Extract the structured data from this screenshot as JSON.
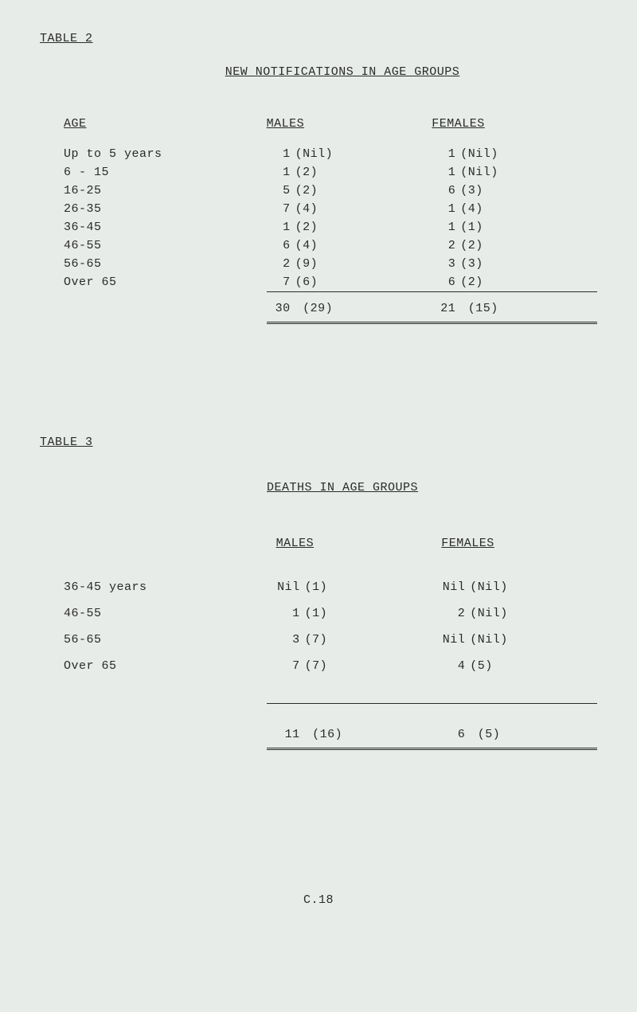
{
  "page_footer": "C.18",
  "colors": {
    "background": "#e8ece8",
    "text": "#2a2a2a"
  },
  "font": {
    "family": "Courier New, monospace",
    "base_size_pt": 11
  },
  "table2": {
    "label": "TABLE 2",
    "title": "NEW NOTIFICATIONS IN AGE GROUPS",
    "columns": {
      "age": "AGE",
      "males": "MALES",
      "females": "FEMALES"
    },
    "rows": [
      {
        "age": "Up to 5 years",
        "males_n": "1",
        "males_p": "(Nil)",
        "females_n": "1",
        "females_p": "(Nil)"
      },
      {
        "age": "6 - 15",
        "males_n": "1",
        "males_p": "(2)",
        "females_n": "1",
        "females_p": "(Nil)"
      },
      {
        "age": "16-25",
        "males_n": "5",
        "males_p": "(2)",
        "females_n": "6",
        "females_p": "(3)"
      },
      {
        "age": "26-35",
        "males_n": "7",
        "males_p": "(4)",
        "females_n": "1",
        "females_p": "(4)"
      },
      {
        "age": "36-45",
        "males_n": "1",
        "males_p": "(2)",
        "females_n": "1",
        "females_p": "(1)"
      },
      {
        "age": "46-55",
        "males_n": "6",
        "males_p": "(4)",
        "females_n": "2",
        "females_p": "(2)"
      },
      {
        "age": "56-65",
        "males_n": "2",
        "males_p": "(9)",
        "females_n": "3",
        "females_p": "(3)"
      },
      {
        "age": "Over 65",
        "males_n": "7",
        "males_p": "(6)",
        "females_n": "6",
        "females_p": "(2)"
      }
    ],
    "totals": {
      "males_n": "30",
      "males_p": "(29)",
      "females_n": "21",
      "females_p": "(15)"
    }
  },
  "table3": {
    "label": "TABLE 3",
    "title": "DEATHS IN AGE GROUPS",
    "columns": {
      "males": "MALES",
      "females": "FEMALES"
    },
    "rows": [
      {
        "age": "36-45 years",
        "males_n": "Nil",
        "males_p": "(1)",
        "females_n": "Nil",
        "females_p": "(Nil)"
      },
      {
        "age": "46-55",
        "males_n": "1",
        "males_p": "(1)",
        "females_n": "2",
        "females_p": "(Nil)"
      },
      {
        "age": "56-65",
        "males_n": "3",
        "males_p": "(7)",
        "females_n": "Nil",
        "females_p": "(Nil)"
      },
      {
        "age": "Over 65",
        "males_n": "7",
        "males_p": "(7)",
        "females_n": "4",
        "females_p": "(5)"
      }
    ],
    "totals": {
      "males_n": "11",
      "males_p": "(16)",
      "females_n": "6",
      "females_p": "(5)"
    }
  }
}
